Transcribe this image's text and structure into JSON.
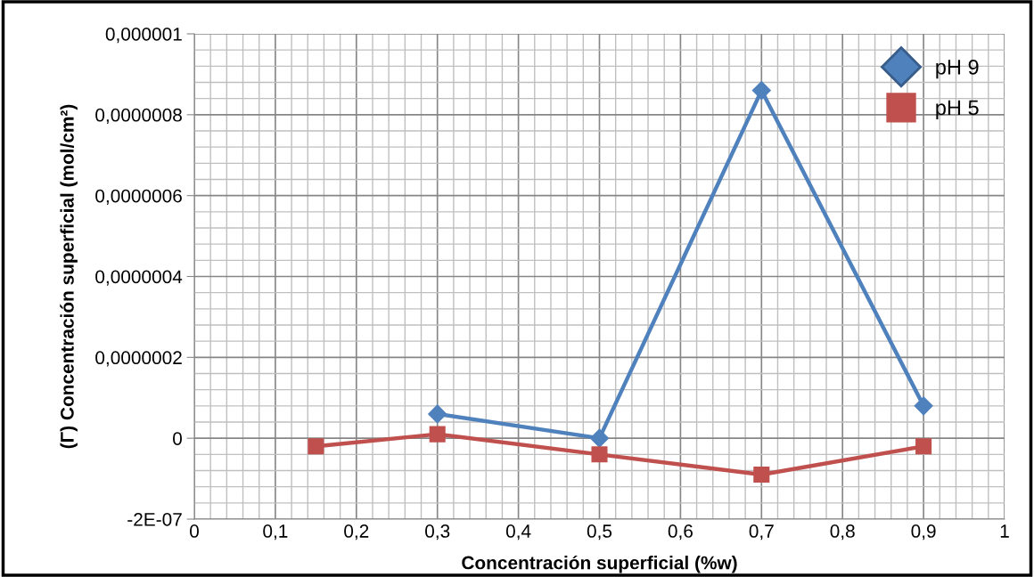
{
  "chart_data": {
    "type": "line",
    "xlabel": "Concentración superficial (%w)",
    "ylabel": "(Γ) Concentración superficial (mol/cm²)",
    "xlim": [
      0,
      1
    ],
    "ylim": [
      -2e-07,
      1e-06
    ],
    "xticks": [
      0,
      {
        "value": 0.1,
        "label": "0,1"
      },
      {
        "value": 0.2,
        "label": "0,2"
      },
      {
        "value": 0.3,
        "label": "0,3"
      },
      {
        "value": 0.4,
        "label": "0,4"
      },
      {
        "value": 0.5,
        "label": "0,5"
      },
      {
        "value": 0.6,
        "label": "0,6"
      },
      {
        "value": 0.7,
        "label": "0,7"
      },
      {
        "value": 0.8,
        "label": "0,8"
      },
      {
        "value": 0.9,
        "label": "0,9"
      },
      1
    ],
    "yticks": [
      {
        "value": -2e-07,
        "label": "-2E-07"
      },
      0,
      {
        "value": 2e-07,
        "label": "0,0000002"
      },
      {
        "value": 4e-07,
        "label": "0,0000004"
      },
      {
        "value": 6e-07,
        "label": "0,0000006"
      },
      {
        "value": 8e-07,
        "label": "0,0000008"
      },
      {
        "value": 1e-06,
        "label": "0,000001"
      }
    ],
    "grid": true,
    "legend": "top right",
    "series": [
      {
        "name": "pH 9",
        "color": "#4f81bd",
        "marker": "diamond",
        "x": [
          0.3,
          0.5,
          0.7,
          0.9
        ],
        "values": [
          6e-08,
          0,
          8.6e-07,
          8e-08
        ]
      },
      {
        "name": "pH 5",
        "color": "#c0504d",
        "marker": "square",
        "x": [
          0.15,
          0.3,
          0.5,
          0.7,
          0.9
        ],
        "values": [
          -2e-08,
          1e-08,
          -4e-08,
          -9e-08,
          -2e-08
        ]
      }
    ]
  }
}
